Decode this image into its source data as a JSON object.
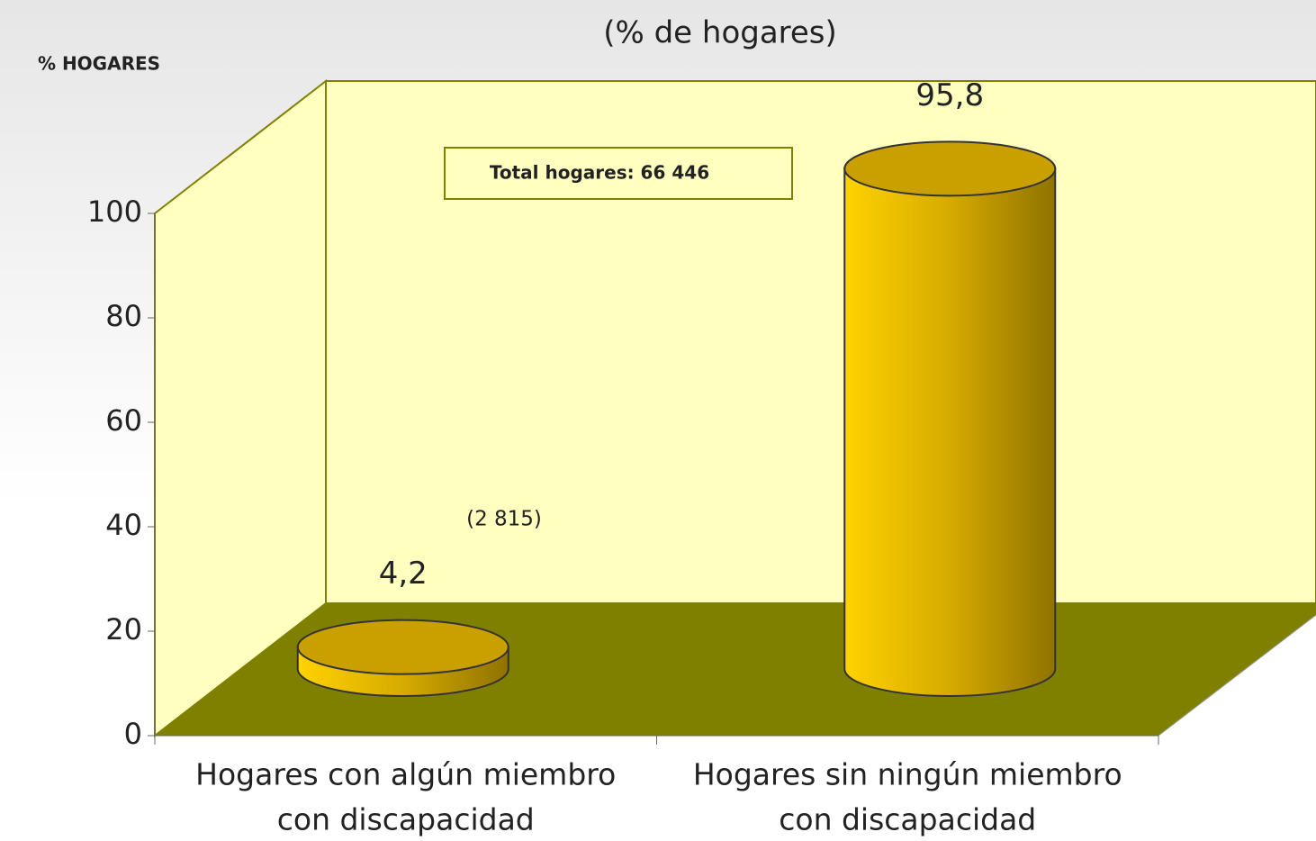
{
  "chart_data": {
    "type": "bar3d-cylinder",
    "title": "(% de hogares)",
    "y_axis_label": "% HOGARES",
    "categories": [
      [
        "Hogares con algún miembro",
        "con discapacidad"
      ],
      [
        "Hogares sin ningún miembro",
        "con discapacidad"
      ]
    ],
    "values": [
      4.2,
      95.8
    ],
    "value_labels": [
      "4,2",
      "95,8"
    ],
    "annotations": [
      "(2 815)",
      "Total hogares: 66 446"
    ],
    "color": "#ffcc00",
    "ylim": [
      0,
      100
    ],
    "yticks": [
      0,
      20,
      40,
      60,
      80,
      100
    ]
  }
}
